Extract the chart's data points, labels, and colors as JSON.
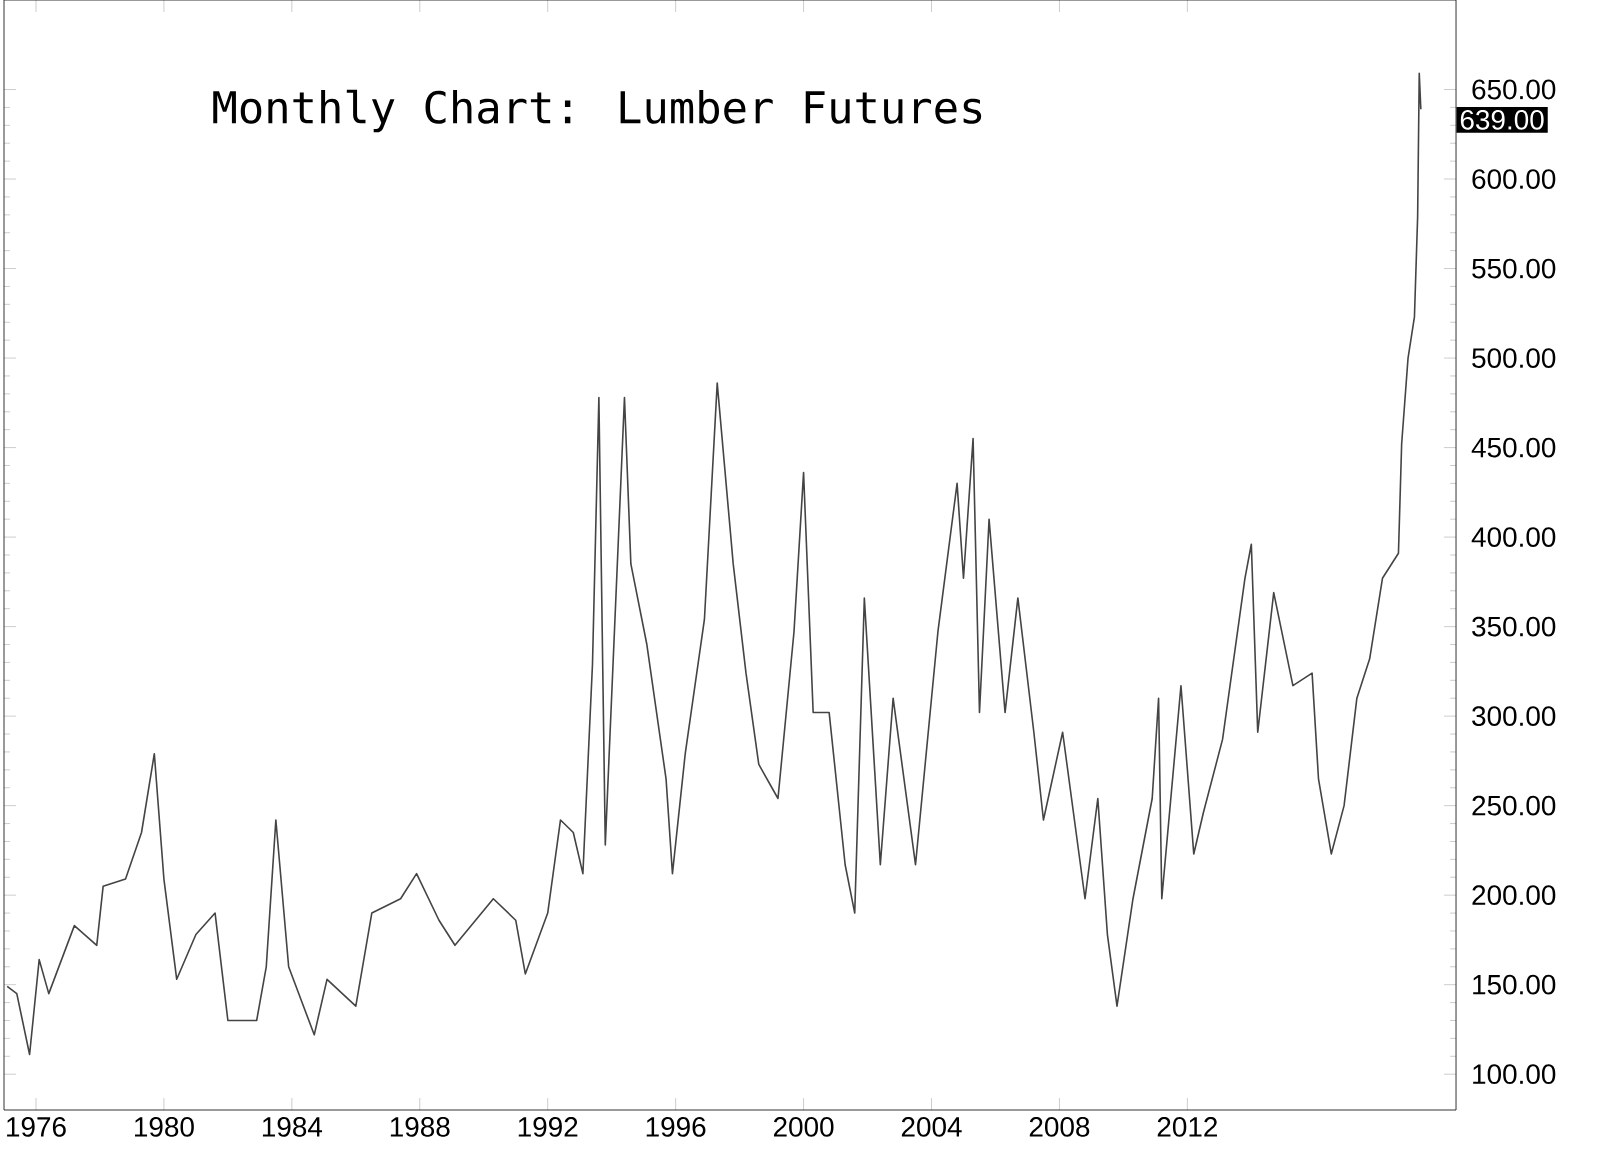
{
  "chart_data": {
    "type": "line",
    "title": "Monthly Chart: Lumber Futures",
    "color": "#444444",
    "marker": "none",
    "x": [
      1975.1,
      1975.4,
      1975.8,
      1976.1,
      1976.4,
      1977.2,
      1977.9,
      1978.1,
      1978.8,
      1979.3,
      1979.7,
      1980.0,
      1980.4,
      1981.0,
      1981.6,
      1982.0,
      1982.9,
      1983.2,
      1983.5,
      1983.9,
      1984.7,
      1985.1,
      1986.0,
      1986.5,
      1987.4,
      1987.9,
      1988.6,
      1989.1,
      1990.3,
      1991.0,
      1991.3,
      1992.0,
      1992.4,
      1992.8,
      1993.1,
      1993.4,
      1993.6,
      1993.8,
      1994.4,
      1994.6,
      1995.1,
      1995.7,
      1995.9,
      1996.3,
      1996.9,
      1997.3,
      1997.8,
      1998.2,
      1998.6,
      1999.2,
      1999.7,
      2000.0,
      2000.3,
      2000.8,
      2001.3,
      2001.6,
      2001.9,
      2002.4,
      2002.8,
      2003.5,
      2004.2,
      2004.8,
      2005.0,
      2005.3,
      2005.5,
      2005.8,
      2006.3,
      2006.7,
      2007.2,
      2007.5,
      2008.1,
      2008.8,
      2009.2,
      2009.5,
      2009.8,
      2010.3,
      2010.9,
      2011.1,
      2011.2,
      2011.8,
      2012.2,
      2012.5,
      2013.1,
      2013.8,
      2014.0,
      2014.2,
      2014.7,
      2015.3,
      2015.9,
      2016.1,
      2016.5,
      2016.9,
      2017.3,
      2017.7,
      2018.1,
      2018.6,
      2018.7,
      2018.9,
      2019.1,
      2019.2,
      2019.25,
      2019.3
    ],
    "values": [
      149,
      145,
      111,
      164,
      145,
      183,
      172,
      205,
      209,
      235,
      279,
      209,
      153,
      178,
      190,
      130,
      130,
      160,
      242,
      160,
      122,
      153,
      138,
      190,
      198,
      212,
      186,
      172,
      198,
      186,
      156,
      190,
      242,
      235,
      212,
      329,
      478,
      228,
      478,
      385,
      340,
      265,
      212,
      279,
      354,
      486,
      385,
      324,
      273,
      254,
      347,
      436,
      302,
      302,
      217,
      190,
      366,
      217,
      310,
      217,
      347,
      430,
      377,
      455,
      302,
      410,
      302,
      366,
      291,
      242,
      291,
      198,
      254,
      178,
      138,
      198,
      254,
      310,
      198,
      317,
      223,
      246,
      287,
      377,
      396,
      291,
      369,
      317,
      324,
      265,
      223,
      250,
      310,
      332,
      377,
      391,
      452,
      500,
      523,
      579,
      659,
      639
    ],
    "xlim": [
      1975,
      2020.4
    ],
    "ylim": [
      80,
      700
    ],
    "xticks": [
      1976,
      1980,
      1984,
      1988,
      1992,
      1996,
      2000,
      2004,
      2008,
      2012
    ],
    "yticks": [
      {
        "value": 100,
        "label": "100.00"
      },
      {
        "value": 150,
        "label": "150.00"
      },
      {
        "value": 200,
        "label": "200.00"
      },
      {
        "value": 250,
        "label": "250.00"
      },
      {
        "value": 300,
        "label": "300.00"
      },
      {
        "value": 350,
        "label": "350.00"
      },
      {
        "value": 400,
        "label": "400.00"
      },
      {
        "value": 450,
        "label": "450.00"
      },
      {
        "value": 500,
        "label": "500.00"
      },
      {
        "value": 550,
        "label": "550.00"
      },
      {
        "value": 600,
        "label": "600.00"
      },
      {
        "value": 650,
        "label": "650.00"
      }
    ],
    "annotations": [
      "639.00"
    ]
  }
}
